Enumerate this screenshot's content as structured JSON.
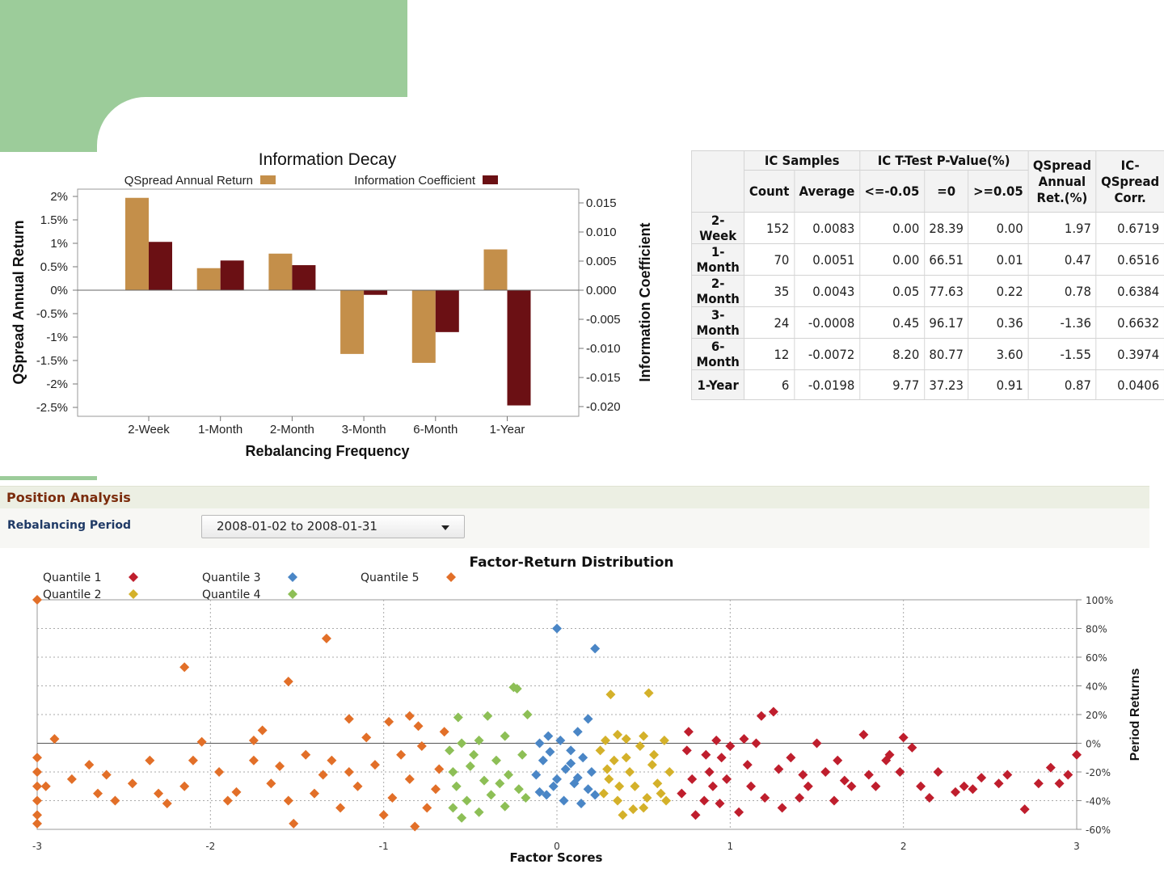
{
  "colors": {
    "qspread": "#c48f4a",
    "ic": "#6b1014",
    "quantile1": "#bf1e2d",
    "quantile2": "#d4b12a",
    "quantile3": "#4a86c6",
    "quantile4": "#8dbf56",
    "quantile5": "#e26f28",
    "header_green": "#9ccc9a"
  },
  "info_decay": {
    "chart_data": {
      "type": "bar",
      "title": "Information Decay",
      "xlabel": "Rebalancing Frequency",
      "ylabel_left": "QSpread Annual Return",
      "ylabel_right": "Information Coefficient",
      "categories": [
        "2-Week",
        "1-Month",
        "2-Month",
        "3-Month",
        "6-Month",
        "1-Year"
      ],
      "series": [
        {
          "name": "QSpread Annual Return",
          "axis": "left",
          "values": [
            1.97,
            0.47,
            0.78,
            -1.36,
            -1.55,
            0.87
          ]
        },
        {
          "name": "Information Coefficient",
          "axis": "right",
          "values": [
            0.0083,
            0.0051,
            0.0043,
            -0.0008,
            -0.0072,
            -0.0198
          ]
        }
      ],
      "ylim_left": [
        -2.5,
        2.0
      ],
      "yticks_left": [
        "2%",
        "1.5%",
        "1%",
        "0.5%",
        "0%",
        "-0.5%",
        "-1%",
        "-1.5%",
        "-2%",
        "-2.5%"
      ],
      "ylim_right": [
        -0.02,
        0.015
      ],
      "yticks_right": [
        "0.015",
        "0.010",
        "0.005",
        "0.000",
        "-0.005",
        "-0.010",
        "-0.015",
        "-0.020"
      ],
      "legend": "top"
    }
  },
  "ic_table": {
    "group_headers": [
      "IC Samples",
      "IC T-Test P-Value(%)",
      "QSpread Annual Ret.(%)",
      "IC-QSpread Corr."
    ],
    "sub_headers": [
      "Count",
      "Average",
      "<=-0.05",
      "=0",
      ">=0.05"
    ],
    "rows": [
      {
        "label": "2-Week",
        "count": "152",
        "average": "0.0083",
        "p_neg": "0.00",
        "p_zero": "28.39",
        "p_pos": "0.00",
        "qspread": "1.97",
        "corr": "0.6719"
      },
      {
        "label": "1-Month",
        "count": "70",
        "average": "0.0051",
        "p_neg": "0.00",
        "p_zero": "66.51",
        "p_pos": "0.01",
        "qspread": "0.47",
        "corr": "0.6516"
      },
      {
        "label": "2-Month",
        "count": "35",
        "average": "0.0043",
        "p_neg": "0.05",
        "p_zero": "77.63",
        "p_pos": "0.22",
        "qspread": "0.78",
        "corr": "0.6384"
      },
      {
        "label": "3-Month",
        "count": "24",
        "average": "-0.0008",
        "p_neg": "0.45",
        "p_zero": "96.17",
        "p_pos": "0.36",
        "qspread": "-1.36",
        "corr": "0.6632"
      },
      {
        "label": "6-Month",
        "count": "12",
        "average": "-0.0072",
        "p_neg": "8.20",
        "p_zero": "80.77",
        "p_pos": "3.60",
        "qspread": "-1.55",
        "corr": "0.3974"
      },
      {
        "label": "1-Year",
        "count": "6",
        "average": "-0.0198",
        "p_neg": "9.77",
        "p_zero": "37.23",
        "p_pos": "0.91",
        "qspread": "0.87",
        "corr": "0.0406"
      }
    ]
  },
  "position_analysis": {
    "title": "Position Analysis",
    "rebalancing_label": "Rebalancing Period",
    "rebalancing_value": "2008-01-02 to 2008-01-31"
  },
  "factor_return": {
    "chart_data": {
      "type": "scatter",
      "title": "Factor-Return Distribution",
      "xlabel": "Factor Scores",
      "ylabel": "Period Returns",
      "xlim": [
        -3,
        3
      ],
      "ylim": [
        -60,
        100
      ],
      "xticks": [
        "-3",
        "-2",
        "-1",
        "0",
        "1",
        "2",
        "3"
      ],
      "yticks": [
        "100%",
        "80%",
        "60%",
        "40%",
        "20%",
        "0%",
        "-20%",
        "-40%",
        "-60%"
      ],
      "legend": "top-left",
      "series": [
        {
          "name": "Quantile 1",
          "color_key": "quantile1",
          "points": [
            [
              1.08,
              3
            ],
            [
              1.15,
              0
            ],
            [
              1.25,
              22
            ],
            [
              1.18,
              19
            ],
            [
              1.5,
              0
            ],
            [
              1.77,
              6
            ],
            [
              2.0,
              4
            ],
            [
              1.92,
              -8
            ],
            [
              2.05,
              -3
            ],
            [
              2.2,
              -20
            ],
            [
              2.4,
              -32
            ],
            [
              2.55,
              -28
            ],
            [
              2.7,
              -46
            ],
            [
              2.85,
              -17
            ],
            [
              2.95,
              -22
            ],
            [
              3.0,
              -8
            ],
            [
              2.9,
              -28
            ],
            [
              2.6,
              -22
            ],
            [
              2.3,
              -34
            ],
            [
              2.1,
              -30
            ],
            [
              1.9,
              -12
            ],
            [
              1.8,
              -22
            ],
            [
              1.7,
              -30
            ],
            [
              1.6,
              -40
            ],
            [
              1.45,
              -30
            ],
            [
              1.3,
              -45
            ],
            [
              1.2,
              -38
            ],
            [
              1.05,
              -48
            ],
            [
              0.95,
              -10
            ],
            [
              0.9,
              -30
            ],
            [
              0.85,
              -40
            ],
            [
              0.8,
              -50
            ],
            [
              0.75,
              -5
            ],
            [
              0.78,
              -25
            ],
            [
              0.88,
              -20
            ],
            [
              0.98,
              -25
            ],
            [
              1.1,
              -15
            ],
            [
              1.35,
              -10
            ],
            [
              1.55,
              -20
            ],
            [
              0.76,
              8
            ],
            [
              0.92,
              2
            ],
            [
              1.0,
              -2
            ],
            [
              1.42,
              -22
            ],
            [
              1.62,
              -12
            ],
            [
              1.84,
              -30
            ],
            [
              2.15,
              -38
            ],
            [
              2.45,
              -24
            ],
            [
              2.78,
              -28
            ],
            [
              0.72,
              -35
            ],
            [
              0.86,
              -8
            ],
            [
              0.94,
              -42
            ],
            [
              1.12,
              -30
            ],
            [
              1.28,
              -18
            ],
            [
              1.4,
              -38
            ],
            [
              1.66,
              -26
            ],
            [
              1.98,
              -20
            ],
            [
              2.35,
              -30
            ]
          ]
        },
        {
          "name": "Quantile 2",
          "color_key": "quantile2",
          "points": [
            [
              0.31,
              34
            ],
            [
              0.53,
              35
            ],
            [
              0.28,
              2
            ],
            [
              0.35,
              6
            ],
            [
              0.5,
              5
            ],
            [
              0.62,
              2
            ],
            [
              0.25,
              -5
            ],
            [
              0.4,
              -10
            ],
            [
              0.55,
              -15
            ],
            [
              0.65,
              -20
            ],
            [
              0.3,
              -25
            ],
            [
              0.45,
              -30
            ],
            [
              0.6,
              -35
            ],
            [
              0.35,
              -40
            ],
            [
              0.5,
              -45
            ],
            [
              0.38,
              -50
            ],
            [
              0.27,
              -35
            ],
            [
              0.42,
              -20
            ],
            [
              0.58,
              -28
            ],
            [
              0.33,
              -12
            ],
            [
              0.48,
              -2
            ],
            [
              0.63,
              -40
            ],
            [
              0.29,
              -18
            ],
            [
              0.52,
              -38
            ],
            [
              0.44,
              -46
            ],
            [
              0.36,
              -30
            ],
            [
              0.56,
              -8
            ],
            [
              0.4,
              3
            ]
          ]
        },
        {
          "name": "Quantile 3",
          "color_key": "quantile3",
          "points": [
            [
              0.0,
              80
            ],
            [
              0.22,
              66
            ],
            [
              0.18,
              17
            ],
            [
              0.12,
              8
            ],
            [
              -0.05,
              5
            ],
            [
              0.02,
              2
            ],
            [
              -0.1,
              0
            ],
            [
              0.08,
              -5
            ],
            [
              0.15,
              -10
            ],
            [
              -0.08,
              -12
            ],
            [
              0.05,
              -18
            ],
            [
              0.2,
              -20
            ],
            [
              -0.12,
              -22
            ],
            [
              0.1,
              -28
            ],
            [
              -0.02,
              -30
            ],
            [
              0.18,
              -32
            ],
            [
              -0.06,
              -36
            ],
            [
              0.04,
              -40
            ],
            [
              0.14,
              -42
            ],
            [
              -0.1,
              -34
            ],
            [
              0.0,
              -25
            ],
            [
              0.08,
              -14
            ],
            [
              0.22,
              -36
            ],
            [
              -0.04,
              -6
            ],
            [
              0.12,
              -24
            ]
          ]
        },
        {
          "name": "Quantile 4",
          "color_key": "quantile4",
          "points": [
            [
              -0.25,
              39
            ],
            [
              -0.23,
              38
            ],
            [
              -0.4,
              19
            ],
            [
              -0.57,
              18
            ],
            [
              -0.17,
              20
            ],
            [
              -0.3,
              5
            ],
            [
              -0.45,
              2
            ],
            [
              -0.55,
              0
            ],
            [
              -0.62,
              -5
            ],
            [
              -0.2,
              -8
            ],
            [
              -0.35,
              -12
            ],
            [
              -0.5,
              -16
            ],
            [
              -0.6,
              -20
            ],
            [
              -0.28,
              -22
            ],
            [
              -0.42,
              -26
            ],
            [
              -0.58,
              -30
            ],
            [
              -0.22,
              -32
            ],
            [
              -0.38,
              -36
            ],
            [
              -0.52,
              -40
            ],
            [
              -0.6,
              -45
            ],
            [
              -0.45,
              -48
            ],
            [
              -0.3,
              -44
            ],
            [
              -0.18,
              -38
            ],
            [
              -0.48,
              -8
            ],
            [
              -0.33,
              -28
            ],
            [
              -0.55,
              -52
            ]
          ]
        },
        {
          "name": "Quantile 5",
          "color_key": "quantile5",
          "points": [
            [
              -3.0,
              100
            ],
            [
              -1.33,
              73
            ],
            [
              -2.15,
              53
            ],
            [
              -1.55,
              43
            ],
            [
              -0.85,
              19
            ],
            [
              -0.97,
              15
            ],
            [
              -1.7,
              9
            ],
            [
              -1.2,
              17
            ],
            [
              -0.8,
              12
            ],
            [
              -2.9,
              3
            ],
            [
              -2.05,
              1
            ],
            [
              -1.75,
              2
            ],
            [
              -1.1,
              4
            ],
            [
              -0.65,
              8
            ],
            [
              -3.0,
              -10
            ],
            [
              -3.0,
              -20
            ],
            [
              -3.0,
              -30
            ],
            [
              -3.0,
              -40
            ],
            [
              -3.0,
              -50
            ],
            [
              -3.0,
              -56
            ],
            [
              -2.8,
              -25
            ],
            [
              -2.7,
              -15
            ],
            [
              -2.6,
              -22
            ],
            [
              -2.55,
              -40
            ],
            [
              -2.45,
              -28
            ],
            [
              -2.35,
              -12
            ],
            [
              -2.25,
              -42
            ],
            [
              -2.15,
              -30
            ],
            [
              -1.95,
              -20
            ],
            [
              -1.85,
              -34
            ],
            [
              -1.75,
              -12
            ],
            [
              -1.65,
              -28
            ],
            [
              -1.55,
              -40
            ],
            [
              -1.45,
              -8
            ],
            [
              -1.35,
              -22
            ],
            [
              -1.25,
              -45
            ],
            [
              -1.15,
              -30
            ],
            [
              -1.05,
              -15
            ],
            [
              -0.95,
              -38
            ],
            [
              -0.85,
              -25
            ],
            [
              -0.75,
              -45
            ],
            [
              -0.68,
              -18
            ],
            [
              -0.82,
              -58
            ],
            [
              -1.52,
              -56
            ],
            [
              -1.9,
              -40
            ],
            [
              -2.3,
              -35
            ],
            [
              -1.0,
              -50
            ],
            [
              -0.7,
              -32
            ],
            [
              -1.4,
              -35
            ],
            [
              -1.2,
              -20
            ],
            [
              -1.6,
              -16
            ],
            [
              -2.1,
              -12
            ],
            [
              -2.65,
              -35
            ],
            [
              -2.95,
              -30
            ],
            [
              -0.9,
              -8
            ],
            [
              -1.3,
              -12
            ],
            [
              -0.78,
              -2
            ]
          ]
        }
      ]
    }
  }
}
